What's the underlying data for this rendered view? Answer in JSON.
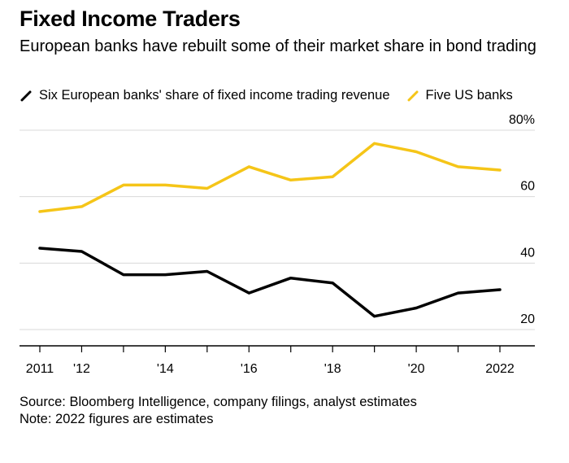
{
  "header": {
    "title": "Fixed Income Traders",
    "subtitle": "European banks have rebuilt some of their market share in bond trading"
  },
  "colors": {
    "european": "#000000",
    "us": "#f5c518",
    "grid": "#d9d9d9",
    "axis": "#000000"
  },
  "footer": {
    "source": "Source: Bloomberg Intelligence, company filings, analyst estimates",
    "note": "Note: 2022 figures are estimates"
  },
  "chart_data": {
    "type": "line",
    "x": [
      2011,
      2012,
      2013,
      2014,
      2015,
      2016,
      2017,
      2018,
      2019,
      2020,
      2021,
      2022
    ],
    "x_tick_values": [
      2011,
      2012,
      2014,
      2016,
      2018,
      2020,
      2022
    ],
    "x_tick_labels": [
      "2011",
      "'12",
      "'14",
      "'16",
      "'18",
      "'20",
      "2022"
    ],
    "y_ticks": [
      20,
      40,
      60,
      80
    ],
    "y_tick_labels": [
      "20",
      "40",
      "60",
      "80%"
    ],
    "ylim": [
      16,
      80
    ],
    "grid": true,
    "series": [
      {
        "name": "Six European banks' share of fixed income trading revenue",
        "color": "#000000",
        "values": [
          44.5,
          43.5,
          36.5,
          36.5,
          37.5,
          31,
          35.5,
          34,
          24,
          26.5,
          31,
          32
        ]
      },
      {
        "name": "Five US banks",
        "color": "#f5c518",
        "values": [
          55.5,
          57,
          63.5,
          63.5,
          62.5,
          69,
          65,
          66,
          76,
          73.5,
          69,
          68
        ]
      }
    ]
  }
}
